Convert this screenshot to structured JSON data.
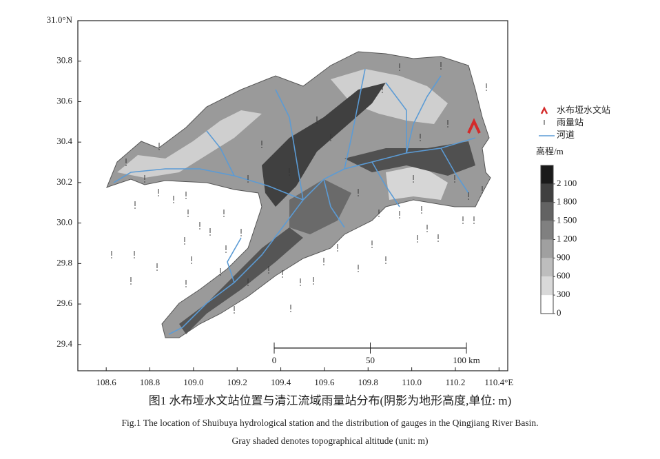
{
  "map": {
    "xlim": [
      108.47,
      110.44
    ],
    "ylim": [
      29.27,
      31.0
    ],
    "xticks": [
      108.6,
      108.8,
      {
        "value": 109,
        "label": "109.0"
      },
      109.2,
      109.4,
      109.6,
      109.8,
      {
        "value": 110,
        "label": "110.0"
      },
      110.2,
      {
        "value": 110.4,
        "label": "110.4°E"
      }
    ],
    "yticks": [
      29.4,
      29.6,
      29.8,
      {
        "value": 30,
        "label": "30.0"
      },
      30.2,
      30.4,
      30.6,
      30.8,
      {
        "value": 31,
        "label": "31.0°N"
      }
    ],
    "legend": [
      {
        "label": "水布垭水文站",
        "color": "#d42a2a"
      },
      {
        "label": "雨量站",
        "color": "#333333"
      },
      {
        "label": "河道",
        "color": "#5b9bd5"
      }
    ],
    "colorbar": {
      "title": "高程/m",
      "lim": [
        0,
        2400
      ],
      "ticks": [
        0,
        300,
        600,
        900,
        {
          "value": 1200,
          "label": "1 200"
        },
        {
          "value": 1500,
          "label": "1 500"
        },
        {
          "value": 1800,
          "label": "1 800"
        },
        {
          "value": 2100,
          "label": "2 100"
        }
      ],
      "colors": [
        "#ffffff",
        "#d9d9d9",
        "#bdbdbd",
        "#a0a0a0",
        "#808080",
        "#636363",
        "#404040",
        "#1a1a1a"
      ]
    },
    "scale_bar": {
      "ticks": [
        0,
        50,
        {
          "value": 100,
          "label": "100 km"
        }
      ]
    }
  },
  "caption": {
    "zh": "图1 水布垭水文站位置与清江流域雨量站分布(阴影为地形高度,单位: m)",
    "en": [
      "Fig.1 The location of Shuibuya hydrological station and the distribution of gauges in the Qingjiang River Basin.",
      "Gray shaded denotes topographical altitude (unit: m)"
    ]
  }
}
